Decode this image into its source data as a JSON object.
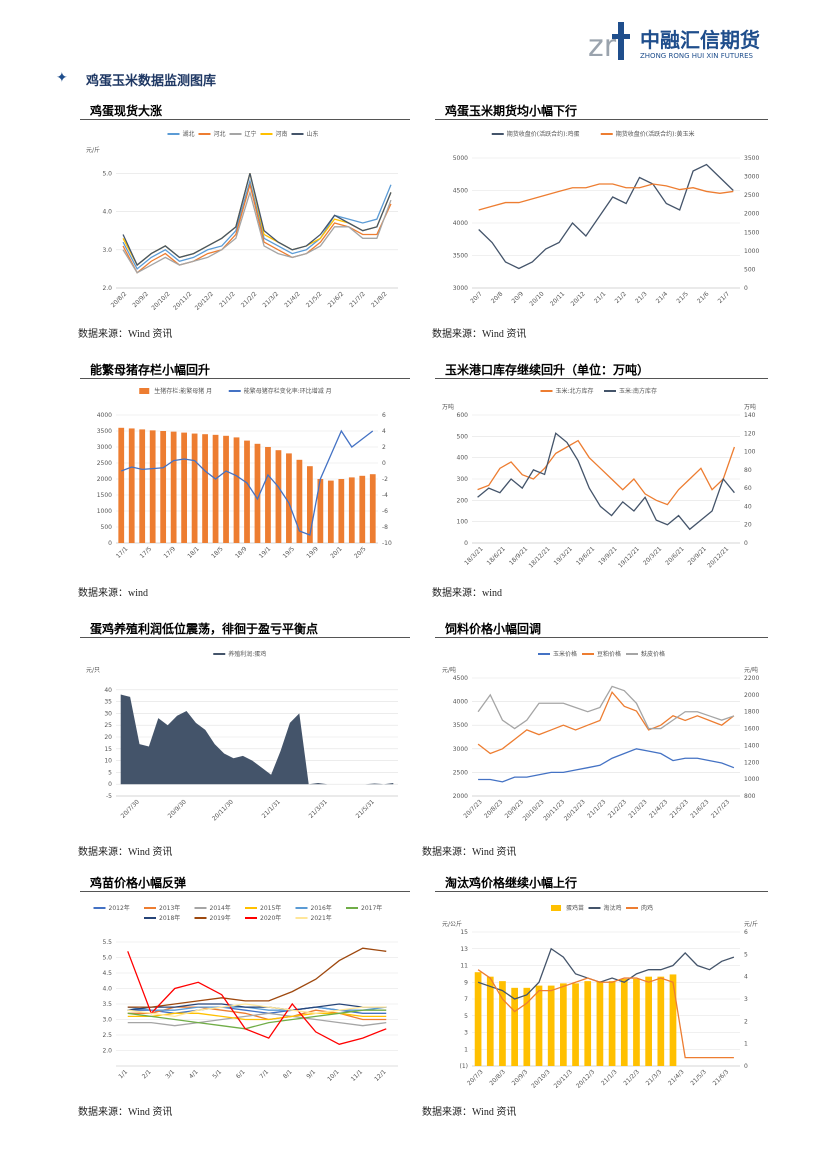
{
  "header": {
    "logo_text": "中融汇信期货",
    "logo_sub": "ZHONG RONG HUI XIN FUTURES"
  },
  "section_title": "鸡蛋玉米数据监测图库",
  "panels": [
    {
      "title": "鸡蛋现货大涨",
      "source": "数据来源：Wind 资讯"
    },
    {
      "title": "鸡蛋玉米期货均小幅下行",
      "source": "数据来源：Wind 资讯"
    },
    {
      "title": "能繁母猪存栏小幅回升",
      "source": "数据来源：wind"
    },
    {
      "title": "玉米港口库存继续回升（单位：万吨）",
      "source": "数据来源：wind"
    },
    {
      "title": "蛋鸡养殖利润低位震荡，徘徊于盈亏平衡点",
      "source": "数据来源：Wind 资讯"
    },
    {
      "title": "饲料价格小幅回调",
      "source": "数据来源：Wind 资讯"
    },
    {
      "title": "鸡苗价格小幅反弹",
      "source": "数据来源：Wind 资讯"
    },
    {
      "title": "淘汰鸡价格继续小幅上行",
      "source": "数据来源：Wind 资讯"
    }
  ],
  "chart_data": [
    {
      "type": "line",
      "yunit": "元/斤",
      "ylim": [
        2,
        5.4
      ],
      "yticks": [
        {
          "value": 2,
          "label": "2.0"
        },
        {
          "value": 3,
          "label": "3.0"
        },
        {
          "value": 4,
          "label": "4.0"
        },
        {
          "value": 5,
          "label": "5.0"
        }
      ],
      "xlabels": [
        "20/8/2",
        "20/9/2",
        "20/10/2",
        "20/11/2",
        "20/12/2",
        "21/1/2",
        "21/2/2",
        "21/3/2",
        "21/4/2",
        "21/5/2",
        "21/6/2",
        "21/7/2",
        "21/8/2"
      ],
      "series": [
        {
          "name": "湖北",
          "color": "#5b9bd5",
          "values": [
            3.2,
            2.5,
            2.8,
            3.0,
            2.7,
            2.8,
            3.0,
            3.1,
            3.5,
            4.8,
            3.3,
            3.1,
            2.9,
            3.0,
            3.3,
            3.9,
            3.8,
            3.7,
            3.8,
            4.7
          ]
        },
        {
          "name": "河北",
          "color": "#ed7d31",
          "values": [
            3.1,
            2.4,
            2.7,
            2.9,
            2.6,
            2.7,
            2.9,
            3.0,
            3.4,
            4.7,
            3.2,
            3.0,
            2.8,
            2.9,
            3.2,
            3.7,
            3.6,
            3.4,
            3.4,
            4.2
          ]
        },
        {
          "name": "辽宁",
          "color": "#a5a5a5",
          "values": [
            3.0,
            2.4,
            2.6,
            2.8,
            2.6,
            2.7,
            2.8,
            3.0,
            3.3,
            4.5,
            3.1,
            2.9,
            2.8,
            2.9,
            3.1,
            3.6,
            3.6,
            3.3,
            3.3,
            4.3
          ]
        },
        {
          "name": "河南",
          "color": "#ffc000",
          "values": [
            3.3,
            2.6,
            2.9,
            3.1,
            2.8,
            2.9,
            3.1,
            3.3,
            3.6,
            5.0,
            3.4,
            3.2,
            3.0,
            3.1,
            3.3,
            3.8,
            3.7,
            3.5,
            3.6,
            4.5
          ]
        },
        {
          "name": "山东",
          "color": "#44546a",
          "values": [
            3.4,
            2.6,
            2.9,
            3.1,
            2.8,
            2.9,
            3.1,
            3.3,
            3.6,
            5.0,
            3.5,
            3.2,
            3.0,
            3.1,
            3.4,
            3.9,
            3.7,
            3.5,
            3.6,
            4.5
          ]
        }
      ]
    },
    {
      "type": "line",
      "ylim": [
        3000,
        5000
      ],
      "yticks": [
        3000,
        3500,
        4000,
        4500,
        5000
      ],
      "y2lim": [
        0,
        3500
      ],
      "y2ticks": [
        0,
        500,
        1000,
        1500,
        2000,
        2500,
        3000,
        3500
      ],
      "xlabels": [
        "20/7",
        "20/8",
        "20/9",
        "20/10",
        "20/11",
        "20/12",
        "21/1",
        "21/2",
        "21/3",
        "21/4",
        "21/5",
        "21/6",
        "21/7"
      ],
      "series": [
        {
          "name": "期货收盘价(活跃合约):鸡蛋",
          "color": "#44546a",
          "values": [
            3900,
            3700,
            3400,
            3300,
            3400,
            3600,
            3700,
            4000,
            3800,
            4100,
            4400,
            4300,
            4700,
            4600,
            4300,
            4200,
            4800,
            4900,
            4700,
            4500
          ]
        },
        {
          "name": "期货收盘价(活跃合约):黄玉米",
          "color": "#ed7d31",
          "axis": "y2",
          "values": [
            2100,
            2200,
            2300,
            2300,
            2400,
            2500,
            2600,
            2700,
            2700,
            2800,
            2800,
            2700,
            2700,
            2800,
            2750,
            2650,
            2700,
            2600,
            2550,
            2600
          ]
        }
      ]
    },
    {
      "type": "combo",
      "ylim": [
        0,
        4000
      ],
      "yticks": [
        0,
        500,
        1000,
        1500,
        2000,
        2500,
        3000,
        3500,
        4000
      ],
      "y2lim": [
        -10,
        6
      ],
      "y2ticks": [
        -10,
        -8,
        -6,
        -4,
        -2,
        0,
        2,
        4,
        6
      ],
      "xlabels": [
        "17/1",
        "17/5",
        "17/9",
        "18/1",
        "18/5",
        "18/9",
        "19/1",
        "19/5",
        "19/9",
        "20/1",
        "20/5"
      ],
      "series": [
        {
          "name": "生猪存栏:能繁母猪 月",
          "color": "#ed7d31",
          "mark": "bar",
          "values": [
            3600,
            3580,
            3550,
            3520,
            3500,
            3480,
            3450,
            3420,
            3400,
            3380,
            3350,
            3300,
            3200,
            3100,
            3000,
            2900,
            2800,
            2600,
            2400,
            2000,
            1950,
            2000,
            2050,
            2100,
            2150
          ]
        },
        {
          "name": "能繁母猪存栏变化率:环比增减 月",
          "color": "#4472c4",
          "axis": "y2",
          "values": [
            -1,
            -0.5,
            -0.8,
            -0.7,
            -0.6,
            0.3,
            0.5,
            0.3,
            -1,
            -2,
            -1,
            -1.6,
            -2.5,
            -4.5,
            -1.5,
            -3,
            -5,
            -8.5,
            -9,
            -2,
            1,
            4,
            2,
            3,
            4
          ]
        }
      ]
    },
    {
      "type": "line",
      "yunit": "万吨",
      "y2unit": "万吨",
      "ylim": [
        0,
        600
      ],
      "yticks": [
        0,
        100,
        200,
        300,
        400,
        500,
        600
      ],
      "y2lim": [
        0,
        140
      ],
      "y2ticks": [
        0,
        20,
        40,
        60,
        80,
        100,
        120,
        140
      ],
      "xlabels": [
        "18/3/21",
        "18/6/21",
        "18/9/21",
        "18/12/21",
        "19/3/21",
        "19/6/21",
        "19/9/21",
        "19/12/21",
        "20/3/21",
        "20/6/21",
        "20/9/21",
        "20/12/21"
      ],
      "series": [
        {
          "name": "玉米:北方库存",
          "color": "#ed7d31",
          "values": [
            250,
            270,
            350,
            380,
            320,
            300,
            350,
            420,
            450,
            480,
            400,
            350,
            300,
            250,
            300,
            230,
            200,
            180,
            250,
            300,
            350,
            250,
            300,
            450
          ]
        },
        {
          "name": "玉米:南方库存",
          "color": "#44546a",
          "axis": "y2",
          "values": [
            50,
            60,
            55,
            70,
            60,
            80,
            75,
            120,
            110,
            90,
            60,
            40,
            30,
            45,
            35,
            50,
            25,
            20,
            30,
            15,
            25,
            35,
            70,
            55
          ]
        }
      ]
    },
    {
      "type": "area",
      "yunit": "元/只",
      "ylim": [
        -5,
        45
      ],
      "yticks": [
        -5,
        0,
        5,
        10,
        15,
        20,
        25,
        30,
        35,
        40
      ],
      "xlabels": [
        "20/7/30",
        "20/9/30",
        "20/11/30",
        "21/1/31",
        "21/3/31",
        "21/5/31"
      ],
      "series": [
        {
          "name": "养殖利润:蛋鸡",
          "color": "#44546a",
          "values": [
            38,
            37,
            17,
            16,
            28,
            25,
            29,
            31,
            26,
            23,
            17,
            13,
            11,
            12,
            10,
            7,
            4,
            14,
            26,
            30,
            0,
            0.5,
            0,
            0,
            0,
            0,
            0,
            0.3,
            0,
            0.5
          ]
        }
      ]
    },
    {
      "type": "line",
      "yunit": "元/吨",
      "y2unit": "元/吨",
      "ylim": [
        2000,
        4500
      ],
      "yticks": [
        2000,
        2500,
        3000,
        3500,
        4000,
        4500
      ],
      "y2lim": [
        800,
        2200
      ],
      "y2ticks": [
        800,
        1000,
        1200,
        1400,
        1600,
        1800,
        2000,
        2200
      ],
      "xlabels": [
        "20/7/23",
        "20/8/23",
        "20/9/23",
        "20/10/23",
        "20/11/23",
        "20/12/23",
        "21/1/23",
        "21/2/23",
        "21/3/23",
        "21/4/23",
        "21/5/23",
        "21/6/23",
        "21/7/23"
      ],
      "series": [
        {
          "name": "玉米价格",
          "color": "#4472c4",
          "values": [
            2350,
            2350,
            2300,
            2400,
            2400,
            2450,
            2500,
            2500,
            2550,
            2600,
            2650,
            2800,
            2900,
            3000,
            2950,
            2900,
            2750,
            2800,
            2800,
            2750,
            2700,
            2600
          ]
        },
        {
          "name": "豆粕价格",
          "color": "#ed7d31",
          "values": [
            3100,
            2900,
            3000,
            3200,
            3400,
            3300,
            3400,
            3500,
            3400,
            3500,
            3600,
            4200,
            3900,
            3800,
            3400,
            3500,
            3700,
            3600,
            3700,
            3600,
            3500,
            3700
          ]
        },
        {
          "name": "麸皮价格",
          "color": "#a5a5a5",
          "axis": "y2",
          "values": [
            1800,
            2000,
            1700,
            1600,
            1700,
            1900,
            1900,
            1900,
            1850,
            1800,
            1850,
            2100,
            2050,
            1900,
            1600,
            1600,
            1700,
            1800,
            1800,
            1750,
            1700,
            1750
          ]
        }
      ]
    },
    {
      "type": "line",
      "ylim": [
        1.5,
        5.5
      ],
      "yticks": [
        {
          "value": 2,
          "label": "2.0"
        },
        2.5,
        {
          "value": 3,
          "label": "3.0"
        },
        3.5,
        {
          "value": 4,
          "label": "4.0"
        },
        4.5,
        {
          "value": 5,
          "label": "5.0"
        },
        5.5
      ],
      "xlabels": [
        "1/1",
        "2/1",
        "3/1",
        "4/1",
        "5/1",
        "6/1",
        "7/1",
        "8/1",
        "9/1",
        "10/1",
        "11/1",
        "12/1"
      ],
      "series": [
        {
          "name": "2012年",
          "color": "#4472c4",
          "values": [
            3.3,
            3.3,
            3.2,
            3.3,
            3.4,
            3.3,
            3.2,
            3.3,
            3.4,
            3.3,
            3.2,
            3.2
          ]
        },
        {
          "name": "2013年",
          "color": "#ed7d31",
          "values": [
            3.2,
            3.2,
            3.4,
            3.4,
            3.3,
            3.2,
            3.0,
            3.1,
            3.3,
            3.2,
            3.0,
            3.0
          ]
        },
        {
          "name": "2014年",
          "color": "#a5a5a5",
          "values": [
            2.9,
            2.9,
            2.8,
            2.9,
            3.0,
            3.1,
            3.2,
            3.1,
            3.0,
            2.9,
            2.8,
            2.9
          ]
        },
        {
          "name": "2015年",
          "color": "#ffc000",
          "values": [
            3.1,
            3.1,
            3.2,
            3.2,
            3.1,
            3.0,
            3.0,
            3.1,
            3.2,
            3.2,
            3.1,
            3.1
          ]
        },
        {
          "name": "2016年",
          "color": "#5b9bd5",
          "values": [
            3.4,
            3.3,
            3.3,
            3.4,
            3.4,
            3.4,
            3.3,
            3.3,
            3.4,
            3.3,
            3.3,
            3.4
          ]
        },
        {
          "name": "2017年",
          "color": "#70ad47",
          "values": [
            3.2,
            3.1,
            3.0,
            2.9,
            2.8,
            2.7,
            2.9,
            3.0,
            3.1,
            3.2,
            3.3,
            3.3
          ]
        },
        {
          "name": "2018年",
          "color": "#264478",
          "values": [
            3.3,
            3.4,
            3.4,
            3.5,
            3.5,
            3.4,
            3.4,
            3.3,
            3.4,
            3.5,
            3.4,
            3.4
          ]
        },
        {
          "name": "2019年",
          "color": "#9e480e",
          "values": [
            3.4,
            3.4,
            3.5,
            3.6,
            3.7,
            3.6,
            3.6,
            3.9,
            4.3,
            4.9,
            5.3,
            5.2
          ]
        },
        {
          "name": "2020年",
          "color": "#ff0000",
          "values": [
            5.2,
            3.2,
            4.0,
            4.2,
            3.8,
            2.7,
            2.4,
            3.5,
            2.6,
            2.2,
            2.4,
            2.7
          ]
        },
        {
          "name": "2021年",
          "color": "#ffe699",
          "values": [
            3.3,
            3.2,
            3.1,
            3.3,
            3.4,
            3.5,
            3.4,
            3.3,
            3.2,
            3.3,
            3.4,
            3.4
          ]
        }
      ]
    },
    {
      "type": "combo",
      "yunit": "元/公斤",
      "y2unit": "元/斤",
      "ylim": [
        -1,
        15
      ],
      "yticks": [
        {
          "value": -1,
          "label": "(1)"
        },
        1,
        3,
        5,
        7,
        9,
        11,
        13,
        15
      ],
      "y2lim": [
        0,
        6
      ],
      "y2ticks": [
        0,
        1,
        2,
        3,
        4,
        5,
        6
      ],
      "xlabels": [
        "20/7/3",
        "20/8/3",
        "20/9/3",
        "20/10/3",
        "20/11/3",
        "20/12/3",
        "21/1/3",
        "21/2/3",
        "21/3/3",
        "21/4/3",
        "21/5/3",
        "21/6/3"
      ],
      "series": [
        {
          "name": "蛋鸡苗",
          "color": "#ffc000",
          "mark": "bar",
          "axis": "y2",
          "values": [
            4.2,
            4.0,
            3.8,
            3.5,
            3.5,
            3.6,
            3.6,
            3.7,
            3.7,
            3.8,
            3.8,
            3.8,
            3.9,
            3.9,
            4.0,
            4.0,
            4.1,
            null,
            null,
            null,
            null,
            null
          ]
        },
        {
          "name": "淘汰鸡",
          "color": "#44546a",
          "values": [
            9,
            8.5,
            8,
            7,
            7.5,
            9,
            13,
            12,
            10,
            9.5,
            9,
            9.5,
            9,
            10,
            10.5,
            10.5,
            11,
            12.5,
            11,
            10.5,
            11.5,
            12
          ]
        },
        {
          "name": "肉鸡",
          "color": "#ed7d31",
          "values": [
            10.5,
            9.5,
            7,
            5.5,
            6.5,
            8,
            8,
            8.5,
            9,
            9.5,
            9,
            9,
            9.5,
            9.5,
            9,
            9.5,
            9,
            0,
            0,
            0,
            0,
            0
          ]
        }
      ]
    }
  ]
}
